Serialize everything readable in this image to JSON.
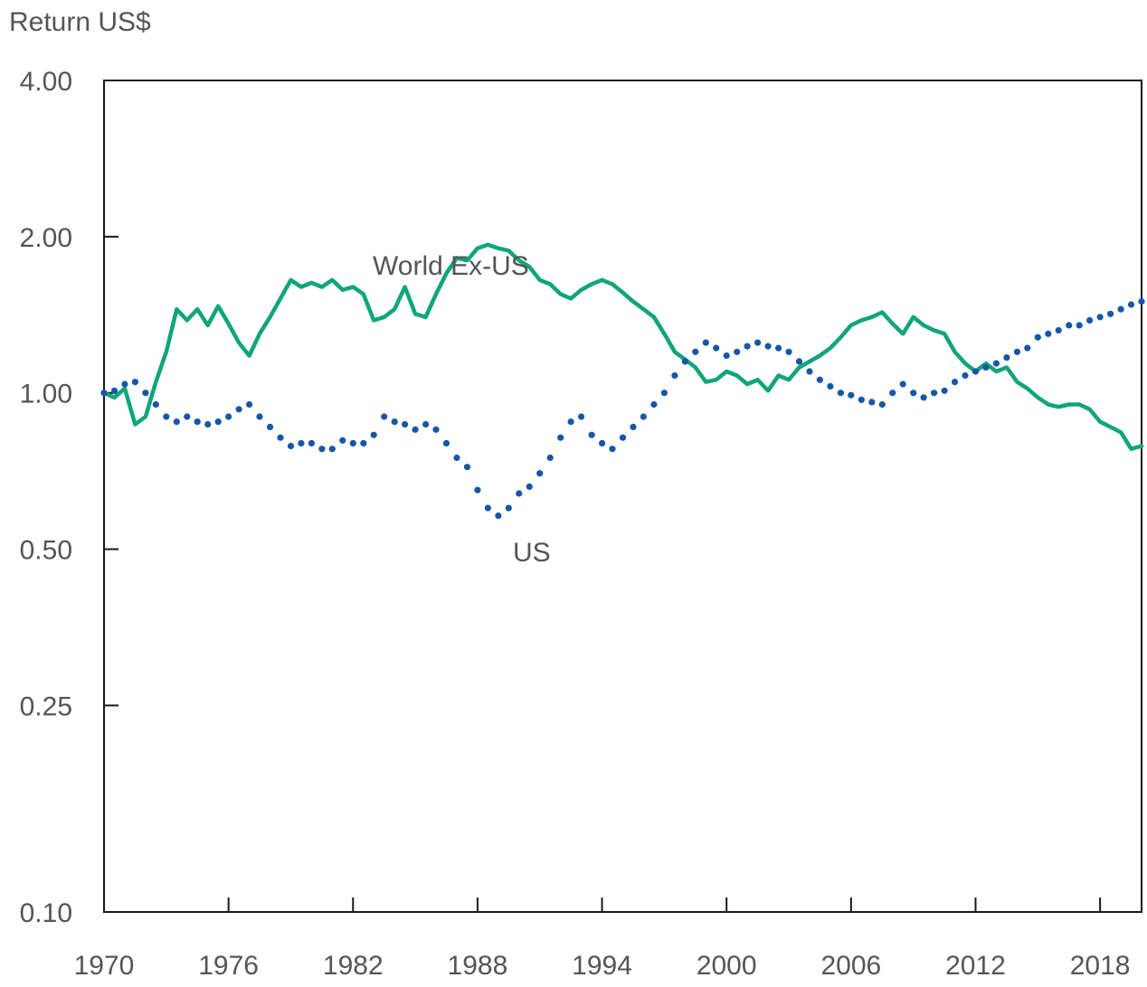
{
  "chart_data": {
    "type": "line",
    "ylabel": "Return US$",
    "y_scale": "log",
    "ylim": [
      0.1,
      4.0
    ],
    "xlim": [
      1970,
      2020
    ],
    "y_ticks": [
      {
        "value": 0.1,
        "label": "0.10"
      },
      {
        "value": 0.25,
        "label": "0.25"
      },
      {
        "value": 0.5,
        "label": "0.50"
      },
      {
        "value": 1.0,
        "label": "1.00"
      },
      {
        "value": 2.0,
        "label": "2.00"
      },
      {
        "value": 4.0,
        "label": "4.00"
      }
    ],
    "x_ticks": [
      {
        "value": 1970,
        "label": "1970"
      },
      {
        "value": 1976,
        "label": "1976"
      },
      {
        "value": 1982,
        "label": "1982"
      },
      {
        "value": 1988,
        "label": "1988"
      },
      {
        "value": 1994,
        "label": "1994"
      },
      {
        "value": 2000,
        "label": "2000"
      },
      {
        "value": 2006,
        "label": "2006"
      },
      {
        "value": 2012,
        "label": "2012"
      },
      {
        "value": 2018,
        "label": "2018"
      }
    ],
    "grid": false,
    "legend": "inline labels",
    "series": [
      {
        "name": "World Ex-US",
        "style": "solid",
        "color": "#10a57a",
        "points": [
          [
            1970.0,
            1.0
          ],
          [
            1970.5,
            0.98
          ],
          [
            1971.0,
            1.02
          ],
          [
            1971.5,
            0.87
          ],
          [
            1972.0,
            0.9
          ],
          [
            1972.5,
            1.05
          ],
          [
            1973.0,
            1.2
          ],
          [
            1973.5,
            1.45
          ],
          [
            1974.0,
            1.38
          ],
          [
            1974.5,
            1.45
          ],
          [
            1975.0,
            1.35
          ],
          [
            1975.5,
            1.47
          ],
          [
            1976.0,
            1.36
          ],
          [
            1976.5,
            1.25
          ],
          [
            1977.0,
            1.18
          ],
          [
            1977.5,
            1.3
          ],
          [
            1978.0,
            1.4
          ],
          [
            1978.5,
            1.52
          ],
          [
            1979.0,
            1.65
          ],
          [
            1979.5,
            1.6
          ],
          [
            1980.0,
            1.63
          ],
          [
            1980.5,
            1.6
          ],
          [
            1981.0,
            1.65
          ],
          [
            1981.5,
            1.58
          ],
          [
            1982.0,
            1.6
          ],
          [
            1982.5,
            1.55
          ],
          [
            1983.0,
            1.38
          ],
          [
            1983.5,
            1.4
          ],
          [
            1984.0,
            1.45
          ],
          [
            1984.5,
            1.6
          ],
          [
            1985.0,
            1.42
          ],
          [
            1985.5,
            1.4
          ],
          [
            1986.0,
            1.55
          ],
          [
            1986.5,
            1.7
          ],
          [
            1987.0,
            1.82
          ],
          [
            1987.5,
            1.8
          ],
          [
            1988.0,
            1.9
          ],
          [
            1988.5,
            1.93
          ],
          [
            1989.0,
            1.9
          ],
          [
            1989.5,
            1.88
          ],
          [
            1990.0,
            1.8
          ],
          [
            1990.5,
            1.75
          ],
          [
            1991.0,
            1.65
          ],
          [
            1991.5,
            1.62
          ],
          [
            1992.0,
            1.55
          ],
          [
            1992.5,
            1.52
          ],
          [
            1993.0,
            1.58
          ],
          [
            1993.5,
            1.62
          ],
          [
            1994.0,
            1.65
          ],
          [
            1994.5,
            1.62
          ],
          [
            1995.0,
            1.56
          ],
          [
            1995.5,
            1.5
          ],
          [
            1996.0,
            1.45
          ],
          [
            1996.5,
            1.4
          ],
          [
            1997.0,
            1.3
          ],
          [
            1997.5,
            1.2
          ],
          [
            1998.0,
            1.16
          ],
          [
            1998.5,
            1.12
          ],
          [
            1999.0,
            1.05
          ],
          [
            1999.5,
            1.06
          ],
          [
            2000.0,
            1.1
          ],
          [
            2000.5,
            1.08
          ],
          [
            2001.0,
            1.04
          ],
          [
            2001.5,
            1.06
          ],
          [
            2002.0,
            1.01
          ],
          [
            2002.5,
            1.08
          ],
          [
            2003.0,
            1.06
          ],
          [
            2003.5,
            1.12
          ],
          [
            2004.0,
            1.15
          ],
          [
            2004.5,
            1.18
          ],
          [
            2005.0,
            1.22
          ],
          [
            2005.5,
            1.28
          ],
          [
            2006.0,
            1.35
          ],
          [
            2006.5,
            1.38
          ],
          [
            2007.0,
            1.4
          ],
          [
            2007.5,
            1.43
          ],
          [
            2008.0,
            1.36
          ],
          [
            2008.5,
            1.3
          ],
          [
            2009.0,
            1.4
          ],
          [
            2009.5,
            1.35
          ],
          [
            2010.0,
            1.32
          ],
          [
            2010.5,
            1.3
          ],
          [
            2011.0,
            1.2
          ],
          [
            2011.5,
            1.14
          ],
          [
            2012.0,
            1.1
          ],
          [
            2012.5,
            1.14
          ],
          [
            2013.0,
            1.1
          ],
          [
            2013.5,
            1.12
          ],
          [
            2014.0,
            1.05
          ],
          [
            2014.5,
            1.02
          ],
          [
            2015.0,
            0.98
          ],
          [
            2015.5,
            0.95
          ],
          [
            2016.0,
            0.94
          ],
          [
            2016.5,
            0.95
          ],
          [
            2017.0,
            0.95
          ],
          [
            2017.5,
            0.93
          ],
          [
            2018.0,
            0.88
          ],
          [
            2018.5,
            0.86
          ],
          [
            2019.0,
            0.84
          ],
          [
            2019.5,
            0.78
          ],
          [
            2020.0,
            0.79
          ]
        ]
      },
      {
        "name": "US",
        "style": "dotted",
        "color": "#1558a6",
        "points": [
          [
            1970.0,
            1.0
          ],
          [
            1970.5,
            1.01
          ],
          [
            1971.0,
            1.04
          ],
          [
            1971.5,
            1.05
          ],
          [
            1972.0,
            1.0
          ],
          [
            1972.5,
            0.95
          ],
          [
            1973.0,
            0.9
          ],
          [
            1973.5,
            0.88
          ],
          [
            1974.0,
            0.9
          ],
          [
            1974.5,
            0.88
          ],
          [
            1975.0,
            0.87
          ],
          [
            1975.5,
            0.88
          ],
          [
            1976.0,
            0.9
          ],
          [
            1976.5,
            0.93
          ],
          [
            1977.0,
            0.95
          ],
          [
            1977.5,
            0.9
          ],
          [
            1978.0,
            0.86
          ],
          [
            1978.5,
            0.82
          ],
          [
            1979.0,
            0.79
          ],
          [
            1979.5,
            0.8
          ],
          [
            1980.0,
            0.8
          ],
          [
            1980.5,
            0.78
          ],
          [
            1981.0,
            0.78
          ],
          [
            1981.5,
            0.81
          ],
          [
            1982.0,
            0.8
          ],
          [
            1982.5,
            0.8
          ],
          [
            1983.0,
            0.83
          ],
          [
            1983.5,
            0.9
          ],
          [
            1984.0,
            0.88
          ],
          [
            1984.5,
            0.87
          ],
          [
            1985.0,
            0.85
          ],
          [
            1985.5,
            0.87
          ],
          [
            1986.0,
            0.85
          ],
          [
            1986.5,
            0.8
          ],
          [
            1987.0,
            0.75
          ],
          [
            1987.5,
            0.72
          ],
          [
            1988.0,
            0.65
          ],
          [
            1988.5,
            0.6
          ],
          [
            1989.0,
            0.58
          ],
          [
            1989.5,
            0.6
          ],
          [
            1990.0,
            0.64
          ],
          [
            1990.5,
            0.66
          ],
          [
            1991.0,
            0.7
          ],
          [
            1991.5,
            0.75
          ],
          [
            1992.0,
            0.82
          ],
          [
            1992.5,
            0.88
          ],
          [
            1993.0,
            0.9
          ],
          [
            1993.5,
            0.83
          ],
          [
            1994.0,
            0.8
          ],
          [
            1994.5,
            0.78
          ],
          [
            1995.0,
            0.82
          ],
          [
            1995.5,
            0.86
          ],
          [
            1996.0,
            0.9
          ],
          [
            1996.5,
            0.95
          ],
          [
            1997.0,
            1.0
          ],
          [
            1997.5,
            1.08
          ],
          [
            1998.0,
            1.15
          ],
          [
            1998.5,
            1.2
          ],
          [
            1999.0,
            1.25
          ],
          [
            1999.5,
            1.22
          ],
          [
            2000.0,
            1.18
          ],
          [
            2000.5,
            1.2
          ],
          [
            2001.0,
            1.23
          ],
          [
            2001.5,
            1.25
          ],
          [
            2002.0,
            1.23
          ],
          [
            2002.5,
            1.22
          ],
          [
            2003.0,
            1.2
          ],
          [
            2003.5,
            1.15
          ],
          [
            2004.0,
            1.1
          ],
          [
            2004.5,
            1.06
          ],
          [
            2005.0,
            1.03
          ],
          [
            2005.5,
            1.0
          ],
          [
            2006.0,
            0.99
          ],
          [
            2006.5,
            0.97
          ],
          [
            2007.0,
            0.96
          ],
          [
            2007.5,
            0.95
          ],
          [
            2008.0,
            1.0
          ],
          [
            2008.5,
            1.04
          ],
          [
            2009.0,
            1.0
          ],
          [
            2009.5,
            0.98
          ],
          [
            2010.0,
            1.0
          ],
          [
            2010.5,
            1.01
          ],
          [
            2011.0,
            1.05
          ],
          [
            2011.5,
            1.08
          ],
          [
            2012.0,
            1.1
          ],
          [
            2012.5,
            1.12
          ],
          [
            2013.0,
            1.14
          ],
          [
            2013.5,
            1.17
          ],
          [
            2014.0,
            1.2
          ],
          [
            2014.5,
            1.22
          ],
          [
            2015.0,
            1.28
          ],
          [
            2015.5,
            1.3
          ],
          [
            2016.0,
            1.32
          ],
          [
            2016.5,
            1.35
          ],
          [
            2017.0,
            1.35
          ],
          [
            2017.5,
            1.38
          ],
          [
            2018.0,
            1.4
          ],
          [
            2018.5,
            1.42
          ],
          [
            2019.0,
            1.45
          ],
          [
            2019.5,
            1.48
          ],
          [
            2020.0,
            1.5
          ]
        ]
      }
    ],
    "annotations": [
      {
        "text": "World Ex-US",
        "series": 0
      },
      {
        "text": "US",
        "series": 1
      }
    ]
  }
}
